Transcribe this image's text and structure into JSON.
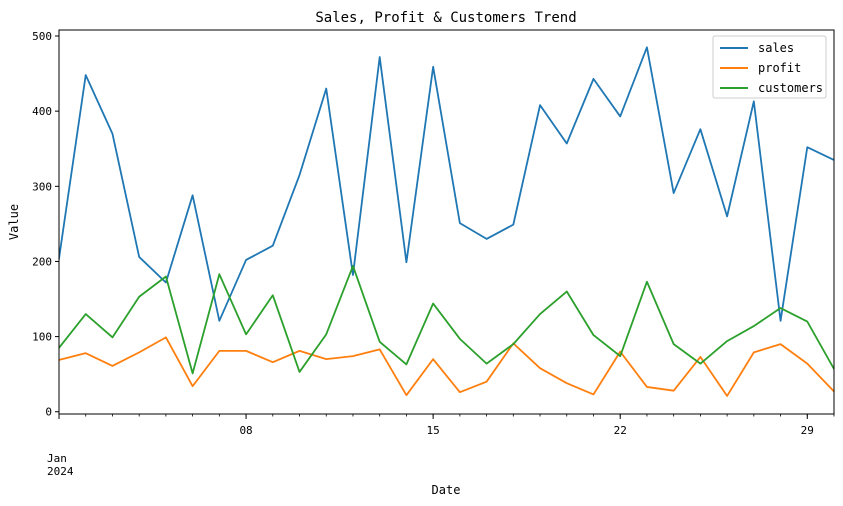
{
  "chart_data": {
    "type": "line",
    "title": "Sales, Profit & Customers Trend",
    "xlabel": "Date",
    "ylabel": "Value",
    "x_start": "2024-01-01",
    "x_end": "2024-01-30",
    "xlim": [
      "2024-01-01",
      "2024-01-30"
    ],
    "ylim": [
      -3,
      508
    ],
    "x": [
      "2024-01-01",
      "2024-01-02",
      "2024-01-03",
      "2024-01-04",
      "2024-01-05",
      "2024-01-06",
      "2024-01-07",
      "2024-01-08",
      "2024-01-09",
      "2024-01-10",
      "2024-01-11",
      "2024-01-12",
      "2024-01-13",
      "2024-01-14",
      "2024-01-15",
      "2024-01-16",
      "2024-01-17",
      "2024-01-18",
      "2024-01-19",
      "2024-01-20",
      "2024-01-21",
      "2024-01-22",
      "2024-01-23",
      "2024-01-24",
      "2024-01-25",
      "2024-01-26",
      "2024-01-27",
      "2024-01-28",
      "2024-01-29",
      "2024-01-30"
    ],
    "x_ticks": [
      {
        "date": "2024-01-01",
        "label": "Jan\n2024"
      },
      {
        "date": "2024-01-08",
        "label": "08"
      },
      {
        "date": "2024-01-15",
        "label": "15"
      },
      {
        "date": "2024-01-22",
        "label": "22"
      },
      {
        "date": "2024-01-29",
        "label": "29"
      }
    ],
    "y_ticks": [
      0,
      100,
      200,
      300,
      400,
      500
    ],
    "grid": false,
    "legend_position": "top-right",
    "series": [
      {
        "name": "sales",
        "color": "#1f77b4",
        "values": [
          204,
          448,
          370,
          206,
          172,
          288,
          121,
          202,
          221,
          315,
          430,
          182,
          472,
          199,
          459,
          251,
          230,
          249,
          408,
          357,
          443,
          393,
          485,
          291,
          376,
          260,
          413,
          121,
          352,
          335
        ]
      },
      {
        "name": "profit",
        "color": "#ff7f0e",
        "values": [
          69,
          78,
          61,
          79,
          99,
          34,
          81,
          81,
          66,
          81,
          70,
          74,
          83,
          22,
          70,
          26,
          40,
          91,
          58,
          38,
          23,
          80,
          33,
          28,
          73,
          21,
          79,
          90,
          64,
          27
        ]
      },
      {
        "name": "customers",
        "color": "#2ca02c",
        "values": [
          85,
          130,
          99,
          153,
          180,
          51,
          183,
          103,
          155,
          53,
          103,
          194,
          93,
          63,
          144,
          97,
          64,
          90,
          130,
          160,
          102,
          74,
          173,
          90,
          64,
          94,
          114,
          138,
          120,
          57
        ]
      }
    ]
  }
}
